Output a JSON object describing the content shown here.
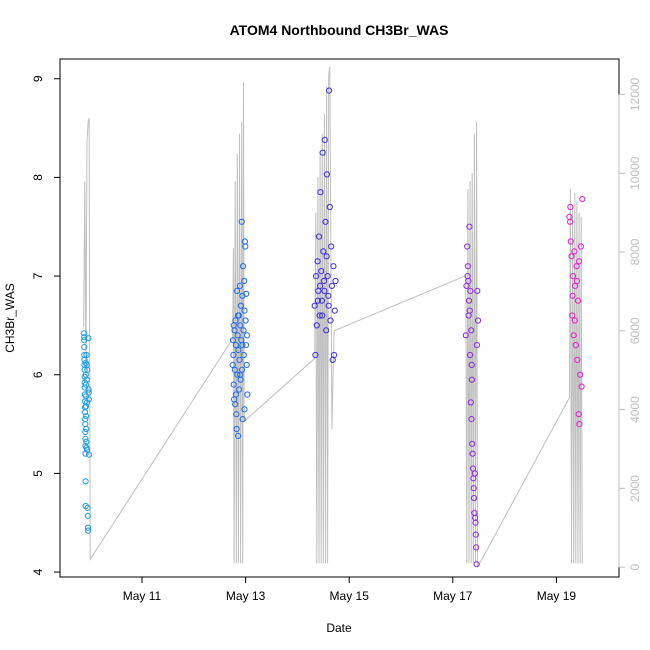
{
  "chart_data": {
    "type": "scatter",
    "title": "ATOM4 Northbound CH3Br_WAS",
    "xlabel": "Date",
    "ylabel": "CH3Br_WAS",
    "xlim": [
      "2018-05-09T10:00",
      "2018-05-20T05:00"
    ],
    "ylim": [
      3.95,
      9.2
    ],
    "y2lim": [
      -250,
      12900
    ],
    "x_ticks": [
      {
        "label": "May 11",
        "date": "2018-05-11"
      },
      {
        "label": "May 13",
        "date": "2018-05-13"
      },
      {
        "label": "May 15",
        "date": "2018-05-15"
      },
      {
        "label": "May 17",
        "date": "2018-05-17"
      },
      {
        "label": "May 19",
        "date": "2018-05-19"
      }
    ],
    "y_ticks": [
      4,
      5,
      6,
      7,
      8,
      9
    ],
    "y2_ticks": [
      0,
      2000,
      4000,
      6000,
      8000,
      10000,
      12000
    ],
    "grid": false,
    "marker": "open-circle",
    "secondary_series": {
      "name": "",
      "color": "#bfbfbf",
      "type": "line",
      "points": [
        [
          "2018-05-09T21:00",
          6100
        ],
        [
          "2018-05-09T21:30",
          9800
        ],
        [
          "2018-05-09T22:00",
          5000
        ],
        [
          "2018-05-09T22:30",
          10800
        ],
        [
          "2018-05-09T23:00",
          11300
        ],
        [
          "2018-05-09T23:30",
          11400
        ],
        [
          "2018-05-10T00:00",
          200
        ],
        [
          "2018-05-12T18:00",
          5800
        ],
        [
          "2018-05-12T18:20",
          8100
        ],
        [
          "2018-05-12T18:40",
          100
        ],
        [
          "2018-05-12T19:10",
          9800
        ],
        [
          "2018-05-12T19:40",
          100
        ],
        [
          "2018-05-12T20:10",
          10500
        ],
        [
          "2018-05-12T20:40",
          100
        ],
        [
          "2018-05-12T21:10",
          11000
        ],
        [
          "2018-05-12T21:40",
          100
        ],
        [
          "2018-05-12T22:10",
          11300
        ],
        [
          "2018-05-12T22:40",
          100
        ],
        [
          "2018-05-12T23:00",
          12300
        ],
        [
          "2018-05-12T23:20",
          3700
        ],
        [
          "2018-05-14T08:00",
          5300
        ],
        [
          "2018-05-14T08:30",
          9000
        ],
        [
          "2018-05-14T09:00",
          100
        ],
        [
          "2018-05-14T09:30",
          9900
        ],
        [
          "2018-05-14T10:00",
          100
        ],
        [
          "2018-05-14T10:30",
          10500
        ],
        [
          "2018-05-14T11:00",
          100
        ],
        [
          "2018-05-14T11:30",
          11000
        ],
        [
          "2018-05-14T12:00",
          100
        ],
        [
          "2018-05-14T12:30",
          11500
        ],
        [
          "2018-05-14T13:00",
          100
        ],
        [
          "2018-05-14T13:30",
          12200
        ],
        [
          "2018-05-14T14:00",
          100
        ],
        [
          "2018-05-14T14:30",
          12500
        ],
        [
          "2018-05-14T15:00",
          12700
        ],
        [
          "2018-05-14T16:00",
          3500
        ],
        [
          "2018-05-14T17:00",
          6000
        ],
        [
          "2018-05-17T06:00",
          7400
        ],
        [
          "2018-05-17T06:30",
          100
        ],
        [
          "2018-05-17T07:00",
          9600
        ],
        [
          "2018-05-17T07:30",
          100
        ],
        [
          "2018-05-17T08:00",
          9800
        ],
        [
          "2018-05-17T08:30",
          100
        ],
        [
          "2018-05-17T09:00",
          10000
        ],
        [
          "2018-05-17T09:30",
          100
        ],
        [
          "2018-05-17T10:00",
          11000
        ],
        [
          "2018-05-17T10:30",
          100
        ],
        [
          "2018-05-17T11:00",
          11300
        ],
        [
          "2018-05-17T11:30",
          0
        ],
        [
          "2018-05-19T06:00",
          4300
        ],
        [
          "2018-05-19T06:30",
          9600
        ],
        [
          "2018-05-19T07:00",
          100
        ],
        [
          "2018-05-19T07:30",
          9200
        ],
        [
          "2018-05-19T08:00",
          100
        ],
        [
          "2018-05-19T08:30",
          9500
        ],
        [
          "2018-05-19T09:00",
          100
        ],
        [
          "2018-05-19T09:30",
          9300
        ],
        [
          "2018-05-19T10:00",
          100
        ],
        [
          "2018-05-19T10:30",
          9000
        ],
        [
          "2018-05-19T11:00",
          100
        ],
        [
          "2018-05-19T11:30",
          8900
        ],
        [
          "2018-05-19T12:00",
          100
        ]
      ]
    },
    "series": [
      {
        "name": "",
        "color": "#1e9be6",
        "points": [
          [
            "2018-05-09T21:10",
            6.42
          ],
          [
            "2018-05-09T21:12",
            6.38
          ],
          [
            "2018-05-09T21:14",
            6.35
          ],
          [
            "2018-05-09T21:16",
            6.28
          ],
          [
            "2018-05-09T21:18",
            6.2
          ],
          [
            "2018-05-09T21:20",
            6.15
          ],
          [
            "2018-05-09T21:22",
            6.1
          ],
          [
            "2018-05-09T21:24",
            6.05
          ],
          [
            "2018-05-09T21:26",
            5.98
          ],
          [
            "2018-05-09T21:28",
            5.92
          ],
          [
            "2018-05-09T21:30",
            5.87
          ],
          [
            "2018-05-09T21:32",
            5.8
          ],
          [
            "2018-05-09T21:34",
            5.73
          ],
          [
            "2018-05-09T21:36",
            5.67
          ],
          [
            "2018-05-09T21:38",
            5.62
          ],
          [
            "2018-05-09T21:40",
            5.55
          ],
          [
            "2018-05-09T21:42",
            5.5
          ],
          [
            "2018-05-09T21:44",
            5.42
          ],
          [
            "2018-05-09T21:46",
            5.35
          ],
          [
            "2018-05-09T21:48",
            5.28
          ],
          [
            "2018-05-09T21:50",
            5.2
          ],
          [
            "2018-05-09T21:52",
            4.92
          ],
          [
            "2018-05-09T21:54",
            4.67
          ],
          [
            "2018-05-09T21:56",
            6.12
          ],
          [
            "2018-05-09T21:58",
            6.0
          ],
          [
            "2018-05-09T22:00",
            5.9
          ],
          [
            "2018-05-09T22:02",
            5.78
          ],
          [
            "2018-05-09T22:04",
            5.68
          ],
          [
            "2018-05-09T22:06",
            5.58
          ],
          [
            "2018-05-09T22:08",
            5.45
          ],
          [
            "2018-05-09T22:10",
            5.32
          ],
          [
            "2018-05-09T22:14",
            5.26
          ],
          [
            "2018-05-09T22:18",
            6.2
          ],
          [
            "2018-05-09T22:22",
            6.1
          ],
          [
            "2018-05-09T22:26",
            5.95
          ],
          [
            "2018-05-09T22:30",
            5.72
          ],
          [
            "2018-05-09T22:34",
            5.24
          ],
          [
            "2018-05-09T22:40",
            6.05
          ],
          [
            "2018-05-09T22:46",
            4.65
          ],
          [
            "2018-05-09T22:52",
            4.57
          ],
          [
            "2018-05-09T22:58",
            4.45
          ],
          [
            "2018-05-09T23:00",
            4.42
          ],
          [
            "2018-05-09T23:10",
            6.37
          ],
          [
            "2018-05-09T23:16",
            5.85
          ],
          [
            "2018-05-09T23:20",
            5.82
          ],
          [
            "2018-05-09T23:24",
            5.75
          ],
          [
            "2018-05-09T23:30",
            5.19
          ]
        ]
      },
      {
        "name": "",
        "color": "#1f6bf0",
        "points": [
          [
            "2018-05-12T18:00",
            6.1
          ],
          [
            "2018-05-12T18:10",
            6.35
          ],
          [
            "2018-05-12T18:20",
            6.2
          ],
          [
            "2018-05-12T18:30",
            5.9
          ],
          [
            "2018-05-12T18:40",
            5.75
          ],
          [
            "2018-05-12T18:50",
            6.45
          ],
          [
            "2018-05-12T19:00",
            6.05
          ],
          [
            "2018-05-12T19:10",
            5.7
          ],
          [
            "2018-05-12T19:20",
            6.55
          ],
          [
            "2018-05-12T19:30",
            6.3
          ],
          [
            "2018-05-12T19:40",
            5.6
          ],
          [
            "2018-05-12T19:50",
            5.45
          ],
          [
            "2018-05-12T20:00",
            6.85
          ],
          [
            "2018-05-12T20:10",
            6.0
          ],
          [
            "2018-05-12T20:20",
            6.4
          ],
          [
            "2018-05-12T20:30",
            5.38
          ],
          [
            "2018-05-12T20:40",
            6.25
          ],
          [
            "2018-05-12T20:50",
            6.6
          ],
          [
            "2018-05-12T21:00",
            5.85
          ],
          [
            "2018-05-12T21:10",
            6.15
          ],
          [
            "2018-05-12T21:20",
            6.9
          ],
          [
            "2018-05-12T21:30",
            6.5
          ],
          [
            "2018-05-12T21:40",
            5.95
          ],
          [
            "2018-05-12T21:50",
            6.7
          ],
          [
            "2018-05-12T22:00",
            6.35
          ],
          [
            "2018-05-12T22:10",
            7.55
          ],
          [
            "2018-05-12T22:20",
            6.05
          ],
          [
            "2018-05-12T22:30",
            6.8
          ],
          [
            "2018-05-12T22:40",
            5.55
          ],
          [
            "2018-05-12T22:50",
            7.1
          ],
          [
            "2018-05-12T23:00",
            6.45
          ],
          [
            "2018-05-12T23:10",
            6.2
          ],
          [
            "2018-05-12T23:20",
            6.95
          ],
          [
            "2018-05-12T23:30",
            5.65
          ],
          [
            "2018-05-12T23:40",
            7.35
          ],
          [
            "2018-05-12T23:50",
            7.3
          ],
          [
            "2018-05-13T00:00",
            6.55
          ],
          [
            "2018-05-13T00:10",
            6.3
          ],
          [
            "2018-05-13T00:20",
            6.82
          ],
          [
            "2018-05-13T00:30",
            6.1
          ],
          [
            "2018-05-13T00:40",
            6.4
          ],
          [
            "2018-05-13T00:50",
            5.8
          ],
          [
            "2018-05-12T18:30",
            6.5
          ],
          [
            "2018-05-12T19:30",
            5.8
          ],
          [
            "2018-05-12T20:30",
            6.6
          ],
          [
            "2018-05-12T21:30",
            6.0
          ],
          [
            "2018-05-12T22:30",
            6.3
          ],
          [
            "2018-05-12T23:30",
            6.65
          ]
        ]
      },
      {
        "name": "",
        "color": "#3b2ee6",
        "points": [
          [
            "2018-05-14T08:00",
            6.7
          ],
          [
            "2018-05-14T08:20",
            6.2
          ],
          [
            "2018-05-14T08:40",
            7.0
          ],
          [
            "2018-05-14T09:00",
            6.5
          ],
          [
            "2018-05-14T09:20",
            7.15
          ],
          [
            "2018-05-14T09:40",
            6.85
          ],
          [
            "2018-05-14T10:00",
            7.4
          ],
          [
            "2018-05-14T10:20",
            6.6
          ],
          [
            "2018-05-14T10:40",
            7.85
          ],
          [
            "2018-05-14T11:00",
            7.05
          ],
          [
            "2018-05-14T11:20",
            6.75
          ],
          [
            "2018-05-14T11:40",
            8.25
          ],
          [
            "2018-05-14T12:00",
            7.25
          ],
          [
            "2018-05-14T12:20",
            6.95
          ],
          [
            "2018-05-14T12:40",
            8.38
          ],
          [
            "2018-05-14T13:00",
            7.55
          ],
          [
            "2018-05-14T13:20",
            6.45
          ],
          [
            "2018-05-14T13:40",
            8.03
          ],
          [
            "2018-05-14T14:00",
            7.0
          ],
          [
            "2018-05-14T14:20",
            6.8
          ],
          [
            "2018-05-14T14:40",
            8.88
          ],
          [
            "2018-05-14T15:00",
            7.7
          ],
          [
            "2018-05-14T15:20",
            6.55
          ],
          [
            "2018-05-14T15:40",
            7.3
          ],
          [
            "2018-05-14T16:00",
            6.9
          ],
          [
            "2018-05-14T16:20",
            6.15
          ],
          [
            "2018-05-14T16:40",
            7.1
          ],
          [
            "2018-05-14T17:00",
            6.2
          ],
          [
            "2018-05-14T17:20",
            6.65
          ],
          [
            "2018-05-14T17:40",
            6.95
          ],
          [
            "2018-05-14T09:30",
            6.75
          ],
          [
            "2018-05-14T10:30",
            6.9
          ],
          [
            "2018-05-14T11:30",
            6.6
          ],
          [
            "2018-05-14T12:30",
            6.85
          ],
          [
            "2018-05-14T13:30",
            7.2
          ],
          [
            "2018-05-14T14:30",
            6.7
          ]
        ]
      },
      {
        "name": "",
        "color": "#8a2be2",
        "points": [
          [
            "2018-05-17T06:00",
            6.4
          ],
          [
            "2018-05-17T06:20",
            6.9
          ],
          [
            "2018-05-17T06:40",
            7.3
          ],
          [
            "2018-05-17T07:00",
            7.1
          ],
          [
            "2018-05-17T07:20",
            6.6
          ],
          [
            "2018-05-17T07:40",
            7.5
          ],
          [
            "2018-05-17T08:00",
            6.2
          ],
          [
            "2018-05-17T08:20",
            5.72
          ],
          [
            "2018-05-17T08:40",
            5.55
          ],
          [
            "2018-05-17T09:00",
            5.3
          ],
          [
            "2018-05-17T09:20",
            5.05
          ],
          [
            "2018-05-17T09:40",
            4.85
          ],
          [
            "2018-05-17T10:00",
            4.6
          ],
          [
            "2018-05-17T10:20",
            4.55
          ],
          [
            "2018-05-17T10:40",
            4.38
          ],
          [
            "2018-05-17T11:00",
            4.08
          ],
          [
            "2018-05-17T11:20",
            6.85
          ],
          [
            "2018-05-17T11:40",
            6.55
          ],
          [
            "2018-05-17T07:10",
            6.95
          ],
          [
            "2018-05-17T07:30",
            6.75
          ],
          [
            "2018-05-17T08:10",
            6.85
          ],
          [
            "2018-05-17T08:30",
            6.45
          ],
          [
            "2018-05-17T08:50",
            5.95
          ],
          [
            "2018-05-17T09:10",
            5.2
          ],
          [
            "2018-05-17T09:30",
            4.95
          ],
          [
            "2018-05-17T09:50",
            4.75
          ],
          [
            "2018-05-17T10:10",
            5.0
          ],
          [
            "2018-05-17T10:30",
            4.5
          ],
          [
            "2018-05-17T10:50",
            4.25
          ],
          [
            "2018-05-17T11:10",
            6.3
          ],
          [
            "2018-05-17T06:50",
            7.0
          ],
          [
            "2018-05-17T07:50",
            6.65
          ],
          [
            "2018-05-17T08:45",
            6.1
          ]
        ]
      },
      {
        "name": "",
        "color": "#e61ecf",
        "points": [
          [
            "2018-05-19T06:00",
            7.6
          ],
          [
            "2018-05-19T06:20",
            7.55
          ],
          [
            "2018-05-19T06:40",
            7.35
          ],
          [
            "2018-05-19T07:00",
            7.2
          ],
          [
            "2018-05-19T07:20",
            6.6
          ],
          [
            "2018-05-19T07:40",
            7.0
          ],
          [
            "2018-05-19T08:00",
            6.4
          ],
          [
            "2018-05-19T08:20",
            7.25
          ],
          [
            "2018-05-19T08:40",
            6.9
          ],
          [
            "2018-05-19T09:00",
            6.3
          ],
          [
            "2018-05-19T09:20",
            7.1
          ],
          [
            "2018-05-19T09:40",
            6.15
          ],
          [
            "2018-05-19T10:00",
            6.75
          ],
          [
            "2018-05-19T10:20",
            5.6
          ],
          [
            "2018-05-19T10:40",
            5.5
          ],
          [
            "2018-05-19T11:00",
            6.0
          ],
          [
            "2018-05-19T11:20",
            7.3
          ],
          [
            "2018-05-19T11:40",
            5.88
          ],
          [
            "2018-05-19T12:00",
            7.78
          ],
          [
            "2018-05-19T06:30",
            7.7
          ],
          [
            "2018-05-19T07:30",
            6.8
          ],
          [
            "2018-05-19T08:30",
            6.55
          ],
          [
            "2018-05-19T09:30",
            6.95
          ],
          [
            "2018-05-19T10:30",
            7.15
          ]
        ]
      }
    ]
  }
}
